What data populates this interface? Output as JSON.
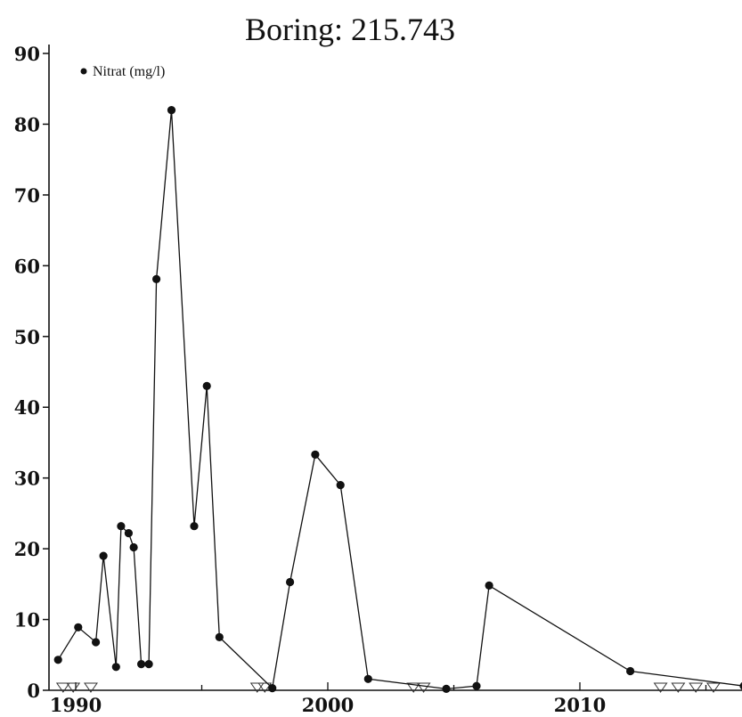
{
  "chart_data": {
    "type": "line",
    "title": "Boring: 215.743",
    "xlabel": "",
    "ylabel": "",
    "xlim": [
      1989,
      2016.5
    ],
    "ylim": [
      0,
      90
    ],
    "x_ticks": [
      1990,
      2000,
      2010
    ],
    "y_ticks": [
      0,
      10,
      20,
      30,
      40,
      50,
      60,
      70,
      80,
      90
    ],
    "legend": {
      "entries": [
        "Nitrat (mg/l)"
      ],
      "placement": "top-left"
    },
    "grid": false,
    "series": [
      {
        "name": "Nitrat (mg/l)",
        "points": [
          {
            "x": 1989.3,
            "y": 4.3
          },
          {
            "x": 1990.1,
            "y": 8.9
          },
          {
            "x": 1990.8,
            "y": 6.8
          },
          {
            "x": 1991.1,
            "y": 19.0
          },
          {
            "x": 1991.6,
            "y": 3.3
          },
          {
            "x": 1991.8,
            "y": 23.2
          },
          {
            "x": 1992.1,
            "y": 22.2
          },
          {
            "x": 1992.3,
            "y": 20.2
          },
          {
            "x": 1992.6,
            "y": 3.7
          },
          {
            "x": 1992.9,
            "y": 3.7
          },
          {
            "x": 1993.2,
            "y": 58.1
          },
          {
            "x": 1993.8,
            "y": 82.0
          },
          {
            "x": 1994.7,
            "y": 23.2
          },
          {
            "x": 1995.2,
            "y": 43.0
          },
          {
            "x": 1995.7,
            "y": 7.5
          },
          {
            "x": 1997.8,
            "y": 0.3
          },
          {
            "x": 1998.5,
            "y": 15.3
          },
          {
            "x": 1999.5,
            "y": 33.3
          },
          {
            "x": 2000.5,
            "y": 29.0
          },
          {
            "x": 2001.6,
            "y": 1.6
          },
          {
            "x": 2004.7,
            "y": 0.2
          },
          {
            "x": 2005.9,
            "y": 0.6
          },
          {
            "x": 2006.4,
            "y": 14.8
          },
          {
            "x": 2012.0,
            "y": 2.7
          },
          {
            "x": 2016.5,
            "y": 0.6
          }
        ],
        "below_detection_limit_x": [
          1989.5,
          1989.9,
          1990.6,
          1997.2,
          1997.5,
          2003.4,
          2003.8,
          2013.2,
          2013.9,
          2014.6,
          2015.3
        ]
      }
    ]
  }
}
